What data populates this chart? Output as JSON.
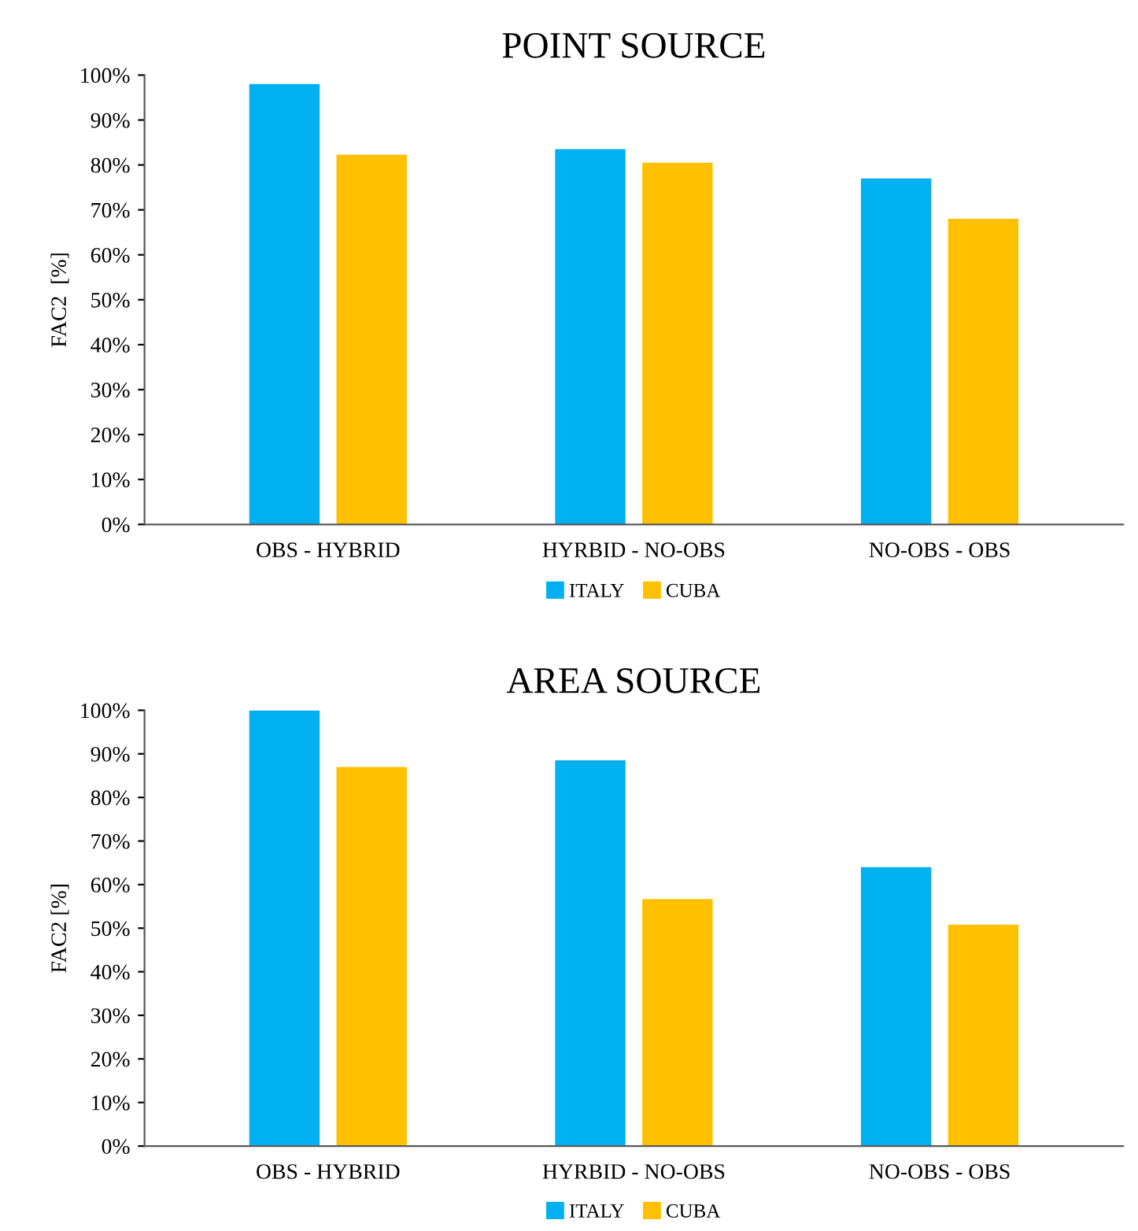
{
  "chart_data": [
    {
      "type": "bar",
      "title": "POINT SOURCE",
      "ylabel": "FAC2  [%]",
      "categories": [
        "OBS - HYBRID",
        "HYRBID - NO-OBS",
        "NO-OBS - OBS"
      ],
      "series": [
        {
          "name": "ITALY",
          "color": "#00b0f0",
          "values": [
            98,
            83.5,
            77
          ]
        },
        {
          "name": "CUBA",
          "color": "#ffc000",
          "values": [
            82.3,
            80.5,
            68
          ]
        }
      ],
      "ylim": [
        0,
        100
      ],
      "yticks": [
        {
          "value": 0,
          "label": "0%"
        },
        {
          "value": 10,
          "label": "10%"
        },
        {
          "value": 20,
          "label": "20%"
        },
        {
          "value": 30,
          "label": "30%"
        },
        {
          "value": 40,
          "label": "40%"
        },
        {
          "value": 50,
          "label": "50%"
        },
        {
          "value": 60,
          "label": "60%"
        },
        {
          "value": 70,
          "label": "70%"
        },
        {
          "value": 80,
          "label": "80%"
        },
        {
          "value": 90,
          "label": "90%"
        },
        {
          "value": 100,
          "label": "100%"
        }
      ],
      "legend": "bottom"
    },
    {
      "type": "bar",
      "title": "AREA SOURCE",
      "ylabel": "FAC2 [%]",
      "categories": [
        "OBS - HYBRID",
        "HYRBID - NO-OBS",
        "NO-OBS - OBS"
      ],
      "series": [
        {
          "name": "ITALY",
          "color": "#00b0f0",
          "values": [
            100,
            88.5,
            64
          ]
        },
        {
          "name": "CUBA",
          "color": "#ffc000",
          "values": [
            87,
            56.7,
            50.8
          ]
        }
      ],
      "ylim": [
        0,
        100
      ],
      "yticks": [
        {
          "value": 0,
          "label": "0%"
        },
        {
          "value": 10,
          "label": "10%"
        },
        {
          "value": 20,
          "label": "20%"
        },
        {
          "value": 30,
          "label": "30%"
        },
        {
          "value": 40,
          "label": "40%"
        },
        {
          "value": 50,
          "label": "50%"
        },
        {
          "value": 60,
          "label": "60%"
        },
        {
          "value": 70,
          "label": "70%"
        },
        {
          "value": 80,
          "label": "80%"
        },
        {
          "value": 90,
          "label": "90%"
        },
        {
          "value": 100,
          "label": "100%"
        }
      ],
      "legend": "bottom"
    }
  ]
}
